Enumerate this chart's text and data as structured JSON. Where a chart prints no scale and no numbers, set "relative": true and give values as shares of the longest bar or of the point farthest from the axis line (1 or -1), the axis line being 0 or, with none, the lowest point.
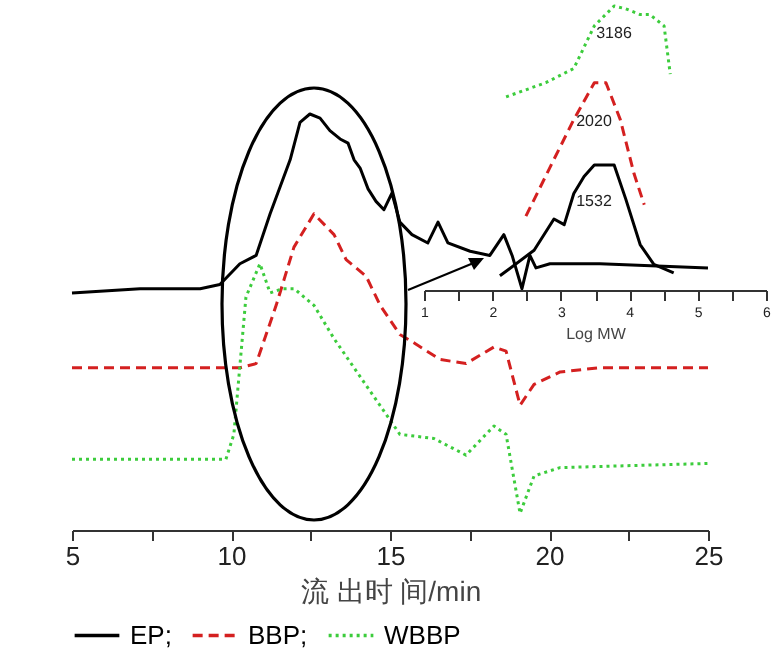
{
  "chart_data": [
    {
      "type": "line",
      "relative": true,
      "xlabel": "流 出时 间/min",
      "xlim": [
        5,
        25
      ],
      "xticks": [
        5,
        {
          "value": 7.5,
          "label": null
        },
        10,
        {
          "value": 12.5,
          "label": null
        },
        15,
        {
          "value": 17.5,
          "label": null
        },
        20,
        {
          "value": 22.5,
          "label": null
        },
        25
      ],
      "tick_labels": "x",
      "legend": "bottom",
      "grid": false,
      "marker": "none",
      "series": [
        {
          "name": "EP;",
          "color": "#000000",
          "line_style": "solid",
          "x": [
            5.0,
            7.14,
            9.03,
            9.65,
            10.28,
            10.79,
            11.23,
            11.86,
            12.17,
            12.48,
            12.8,
            13.11,
            13.43,
            13.68,
            13.87,
            14.06,
            14.31,
            14.56,
            14.81,
            15.06,
            15.31,
            15.69,
            16.19,
            16.51,
            16.82,
            17.52,
            18.14,
            18.58,
            18.84,
            19.15,
            19.4,
            19.59,
            20.03,
            21.6,
            25.0
          ],
          "values": [
            0.57,
            0.58,
            0.58,
            0.59,
            0.64,
            0.66,
            0.76,
            0.89,
            0.98,
            1.0,
            0.99,
            0.96,
            0.94,
            0.93,
            0.89,
            0.87,
            0.82,
            0.79,
            0.77,
            0.81,
            0.74,
            0.71,
            0.69,
            0.74,
            0.69,
            0.67,
            0.66,
            0.71,
            0.66,
            0.58,
            0.66,
            0.63,
            0.64,
            0.64,
            0.63
          ]
        },
        {
          "name": "BBP;",
          "color": "#d42020",
          "line_style": "dashed",
          "x": [
            5.0,
            10.28,
            10.79,
            11.42,
            11.98,
            12.61,
            13.24,
            13.62,
            14.25,
            14.69,
            15.31,
            15.75,
            16.57,
            17.39,
            18.27,
            18.65,
            19.09,
            19.53,
            20.35,
            21.6,
            25.0
          ],
          "values": [
            0.39,
            0.39,
            0.4,
            0.54,
            0.68,
            0.76,
            0.71,
            0.65,
            0.61,
            0.54,
            0.47,
            0.45,
            0.41,
            0.4,
            0.44,
            0.43,
            0.3,
            0.35,
            0.38,
            0.39,
            0.39
          ]
        },
        {
          "name": "WBBP",
          "color": "#3ccc3c",
          "line_style": "dotted",
          "x": [
            5.0,
            9.84,
            10.09,
            10.47,
            10.91,
            11.23,
            11.61,
            11.99,
            12.61,
            13.24,
            13.87,
            14.5,
            15.31,
            16.38,
            17.39,
            18.27,
            18.65,
            19.09,
            19.53,
            20.35,
            25.0
          ],
          "values": [
            0.17,
            0.17,
            0.23,
            0.56,
            0.64,
            0.57,
            0.58,
            0.58,
            0.54,
            0.46,
            0.39,
            0.32,
            0.23,
            0.22,
            0.18,
            0.25,
            0.23,
            0.04,
            0.13,
            0.15,
            0.16
          ]
        }
      ]
    },
    {
      "type": "line",
      "relative": true,
      "xlabel": "Log MW",
      "xlim": [
        1,
        6
      ],
      "xticks": [
        1,
        {
          "value": 1.5,
          "label": null
        },
        2,
        {
          "value": 2.5,
          "label": null
        },
        3,
        {
          "value": 3.5,
          "label": null
        },
        4,
        {
          "value": 4.5,
          "label": null
        },
        5,
        {
          "value": 5.5,
          "label": null
        },
        6
      ],
      "tick_labels": "x",
      "grid": false,
      "marker": "none",
      "annotations": [
        "3186",
        "2020",
        "1532"
      ],
      "series": [
        {
          "color": "#000000",
          "line_style": "solid",
          "x": [
            2.11,
            2.61,
            2.9,
            3.05,
            3.19,
            3.34,
            3.49,
            3.78,
            3.95,
            4.16,
            4.36,
            4.65
          ],
          "values": [
            0.05,
            0.14,
            0.25,
            0.23,
            0.34,
            0.4,
            0.44,
            0.44,
            0.32,
            0.16,
            0.09,
            0.06
          ]
        },
        {
          "color": "#d42020",
          "line_style": "dashed",
          "x": [
            2.49,
            2.9,
            3.19,
            3.49,
            3.66,
            3.87,
            4.07,
            4.22
          ],
          "values": [
            0.26,
            0.46,
            0.6,
            0.73,
            0.73,
            0.6,
            0.41,
            0.3
          ]
        },
        {
          "color": "#3ccc3c",
          "line_style": "dotted",
          "x": [
            2.2,
            2.78,
            3.19,
            3.49,
            3.78,
            3.95,
            4.16,
            4.3,
            4.51,
            4.6
          ],
          "values": [
            0.68,
            0.73,
            0.78,
            0.93,
            1.0,
            0.99,
            0.97,
            0.97,
            0.93,
            0.76
          ]
        }
      ]
    }
  ]
}
